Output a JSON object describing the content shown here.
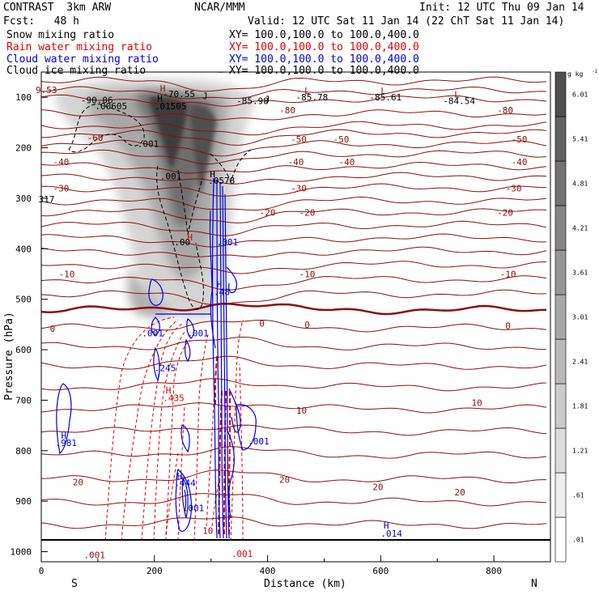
{
  "header": {
    "model": "CONTRAST  3km ARW",
    "org": "NCAR/MMM",
    "init": "Init: 12 UTC Thu 09 Jan 14",
    "fcst": "Fcst:   48 h",
    "valid": "Valid: 12 UTC Sat 11 Jan 14 (22 ChT Sat 11 Jan 14)"
  },
  "fields": [
    {
      "name": "Snow mixing ratio",
      "range": "XY= 100.0,100.0 to 100.0,400.0",
      "color": "#000000"
    },
    {
      "name": "Rain water mixing ratio",
      "range": "XY= 100.0,100.0 to 100.0,400.0",
      "color": "#e00000"
    },
    {
      "name": "Cloud water mixing ratio",
      "range": "XY= 100.0,100.0 to 100.0,400.0",
      "color": "#0000d8"
    },
    {
      "name": "Cloud ice mixing ratio",
      "range": "XY= 100.0,100.0 to 100.0,400.0",
      "color": "#000000"
    }
  ],
  "chart_data": {
    "type": "heatmap",
    "xlabel": "Distance (km)",
    "ylabel": "Pressure (hPa)",
    "xlim": [
      0,
      900
    ],
    "ylim": [
      1020,
      50
    ],
    "x_ticks": [
      0,
      200,
      400,
      600,
      800
    ],
    "y_ticks": [
      100,
      200,
      300,
      400,
      500,
      600,
      700,
      800,
      900,
      1000
    ],
    "direction_labels": {
      "left": "S",
      "right": "N"
    },
    "colorbar": {
      "units": "g kg",
      "units_exp": "-1",
      "levels": [
        ".01",
        ".61",
        "1.21",
        "1.81",
        "2.41",
        "3.01",
        "3.61",
        "4.21",
        "4.81",
        "5.41",
        "6.01"
      ]
    },
    "isotherm_labels": [
      {
        "text": "-80",
        "x": 435,
        "p": 125
      },
      {
        "text": "-80",
        "x": 820,
        "p": 125
      },
      {
        "text": "-60",
        "x": 95,
        "p": 180
      },
      {
        "text": "-50",
        "x": 455,
        "p": 183
      },
      {
        "text": "-50",
        "x": 530,
        "p": 183
      },
      {
        "text": "-50",
        "x": 845,
        "p": 183
      },
      {
        "text": "-40",
        "x": 35,
        "p": 228
      },
      {
        "text": "-40",
        "x": 450,
        "p": 228
      },
      {
        "text": "-40",
        "x": 540,
        "p": 228
      },
      {
        "text": "-40",
        "x": 845,
        "p": 228
      },
      {
        "text": "-30",
        "x": 35,
        "p": 280
      },
      {
        "text": "-30",
        "x": 455,
        "p": 280
      },
      {
        "text": "-30",
        "x": 835,
        "p": 280
      },
      {
        "text": "-20",
        "x": 400,
        "p": 328
      },
      {
        "text": "-20",
        "x": 470,
        "p": 328
      },
      {
        "text": "-20",
        "x": 820,
        "p": 328
      },
      {
        "text": "-10",
        "x": 45,
        "p": 450
      },
      {
        "text": "-10",
        "x": 470,
        "p": 450
      },
      {
        "text": "-10",
        "x": 825,
        "p": 450
      },
      {
        "text": "0",
        "x": 20,
        "p": 558
      },
      {
        "text": "0",
        "x": 390,
        "p": 548
      },
      {
        "text": "0",
        "x": 470,
        "p": 550
      },
      {
        "text": "0",
        "x": 825,
        "p": 553
      },
      {
        "text": "10",
        "x": 460,
        "p": 720
      },
      {
        "text": "10",
        "x": 770,
        "p": 705
      },
      {
        "text": "20",
        "x": 65,
        "p": 862
      },
      {
        "text": "20",
        "x": 430,
        "p": 857
      },
      {
        "text": "20",
        "x": 595,
        "p": 872
      },
      {
        "text": "20",
        "x": 740,
        "p": 882
      }
    ],
    "annotations": [
      {
        "text": "9.53",
        "x": -10,
        "p": 85,
        "color": "#8b1010"
      },
      {
        "text": "-90.06",
        "x": 70,
        "p": 105,
        "color": "#000000"
      },
      {
        "text": ".00605",
        "x": 95,
        "p": 117,
        "color": "#000000"
      },
      {
        "text": "H",
        "x": 210,
        "p": 82,
        "color": "#8b1010"
      },
      {
        "text": "-70.55",
        "x": 215,
        "p": 93,
        "color": "#000000"
      },
      {
        "text": "H",
        "x": 205,
        "p": 102,
        "color": "#000000"
      },
      {
        "text": ".01505",
        "x": 200,
        "p": 117,
        "color": "#000000"
      },
      {
        "text": "J",
        "x": 285,
        "p": 97,
        "color": "#000000"
      },
      {
        "text": "-85.98",
        "x": 345,
        "p": 107,
        "color": "#000000"
      },
      {
        "text": "J",
        "x": 395,
        "p": 104,
        "color": "#000000"
      },
      {
        "text": "L",
        "x": 465,
        "p": 87,
        "color": "#8b1010"
      },
      {
        "text": "-85.78",
        "x": 450,
        "p": 100,
        "color": "#000000"
      },
      {
        "text": "L",
        "x": 600,
        "p": 87,
        "color": "#8b1010"
      },
      {
        "text": "-85.61",
        "x": 580,
        "p": 100,
        "color": "#000000"
      },
      {
        "text": "L",
        "x": 730,
        "p": 94,
        "color": "#8b1010"
      },
      {
        "text": "-84.54",
        "x": 710,
        "p": 107,
        "color": "#000000"
      },
      {
        "text": ".001",
        "x": 170,
        "p": 192,
        "color": "#000000"
      },
      {
        "text": ".001",
        "x": 210,
        "p": 256,
        "color": "#000000"
      },
      {
        "text": "H",
        "x": 298,
        "p": 252,
        "color": "#000000"
      },
      {
        "text": ".0578",
        "x": 295,
        "p": 265,
        "color": "#000000"
      },
      {
        "text": "317",
        "x": -5,
        "p": 302,
        "color": "#000000"
      },
      {
        "text": ".00",
        "x": 235,
        "p": 387,
        "color": "#000000"
      },
      {
        "text": "H",
        "x": 258,
        "p": 377,
        "color": "#e00000"
      },
      {
        "text": ".001",
        "x": 310,
        "p": 387,
        "color": "#0000d8"
      },
      {
        "text": "H",
        "x": 310,
        "p": 470,
        "color": "#0000d8"
      },
      {
        "text": ".48",
        "x": 305,
        "p": 485,
        "color": "#0000d8"
      },
      {
        "text": ".001",
        "x": 178,
        "p": 567,
        "color": "#0000d8"
      },
      {
        "text": ".001",
        "x": 258,
        "p": 567,
        "color": "#0000d8"
      },
      {
        "text": ".245",
        "x": 200,
        "p": 636,
        "color": "#0000d8"
      },
      {
        "text": "H",
        "x": 220,
        "p": 680,
        "color": "#e00000"
      },
      {
        "text": ".435",
        "x": 215,
        "p": 695,
        "color": "#e00000"
      },
      {
        "text": ".001",
        "x": 365,
        "p": 781,
        "color": "#0000d8"
      },
      {
        "text": "H",
        "x": 35,
        "p": 770,
        "color": "#0000d8"
      },
      {
        "text": ".981",
        "x": 25,
        "p": 784,
        "color": "#0000d8"
      },
      {
        "text": "H",
        "x": 240,
        "p": 850,
        "color": "#0000d8"
      },
      {
        "text": ".444",
        "x": 235,
        "p": 864,
        "color": "#0000d8"
      },
      {
        "text": ".001",
        "x": 250,
        "p": 913,
        "color": "#0000d8"
      },
      {
        "text": "10",
        "x": 285,
        "p": 958,
        "color": "#8b1010"
      },
      {
        "text": "H",
        "x": 605,
        "p": 948,
        "color": "#0000d8"
      },
      {
        "text": ".014",
        "x": 600,
        "p": 964,
        "color": "#0000d8"
      },
      {
        "text": ".001",
        "x": 75,
        "p": 1006,
        "color": "#8b1010"
      },
      {
        "text": ".001",
        "x": 336,
        "p": 1004,
        "color": "#e00000"
      }
    ]
  }
}
